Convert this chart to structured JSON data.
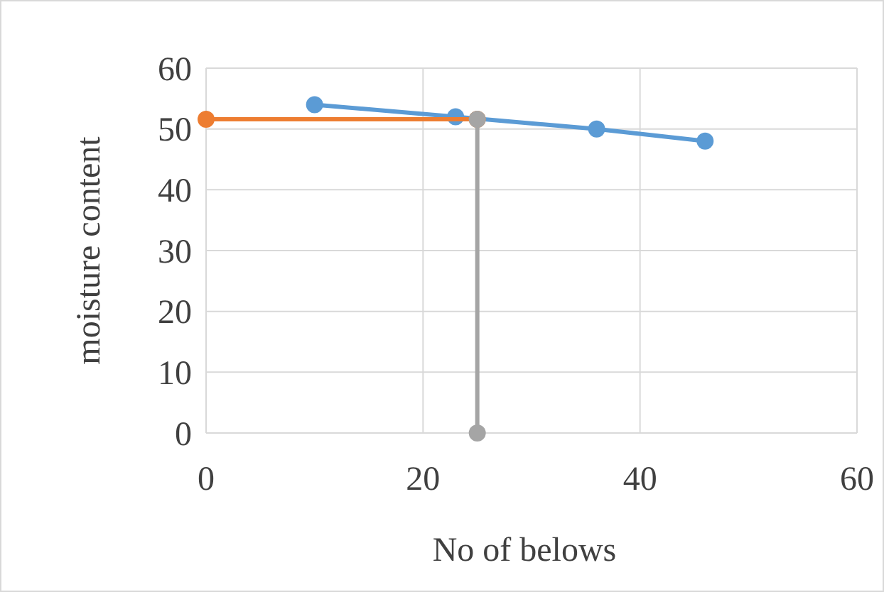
{
  "chart_data": {
    "type": "line",
    "xlabel": "No of belows",
    "ylabel": "moisture content",
    "xlim": [
      0,
      60
    ],
    "xticks": [
      0,
      20,
      40,
      60
    ],
    "ylim": [
      0,
      60
    ],
    "yticks": [
      0,
      10,
      20,
      30,
      40,
      50,
      60
    ],
    "grid": true,
    "marker": "circle",
    "line_style": "solid",
    "series": [
      {
        "color": "#5b9bd5",
        "x": [
          10,
          23,
          36,
          46
        ],
        "values": [
          54,
          52,
          50,
          48
        ]
      },
      {
        "color": "#ed7d31",
        "x": [
          0,
          25
        ],
        "values": [
          51.6,
          51.6
        ]
      },
      {
        "color": "#a5a5a5",
        "x": [
          25,
          25
        ],
        "values": [
          51.6,
          0
        ]
      }
    ]
  }
}
